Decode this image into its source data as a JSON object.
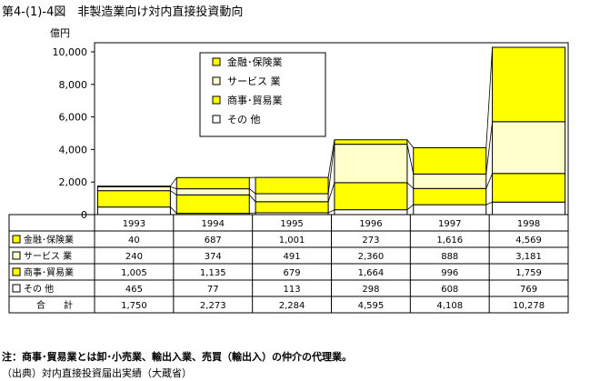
{
  "title": "第4-(1)-4図　非製造業向け対内直接投資動向",
  "chart_data": {
    "type": "bar",
    "stacked": true,
    "unit_label": "億円",
    "categories": [
      "1993",
      "1994",
      "1995",
      "1996",
      "1997",
      "1998"
    ],
    "ylim": [
      0,
      10000
    ],
    "yticks": [
      "0",
      "2,000",
      "4,000",
      "6,000",
      "8,000",
      "10,000"
    ],
    "series": [
      {
        "name": "その 他",
        "values": [
          465,
          77,
          113,
          298,
          608,
          769
        ],
        "color": "#ffffff"
      },
      {
        "name": "商事･貿易業",
        "values": [
          1005,
          1135,
          679,
          1664,
          996,
          1759
        ],
        "color": "#ffff00"
      },
      {
        "name": "サービス 業",
        "values": [
          240,
          374,
          491,
          2360,
          888,
          3181
        ],
        "color": "#ffffcc"
      },
      {
        "name": "金融･保険業",
        "values": [
          40,
          687,
          1001,
          273,
          1616,
          4569
        ],
        "color": "#ffff00"
      }
    ],
    "legend_placement": "top-center",
    "table": {
      "rows": [
        {
          "label": "金融･保険業",
          "values": [
            "40",
            "687",
            "1,001",
            "273",
            "1,616",
            "4,569"
          ],
          "color": "#ffff00"
        },
        {
          "label": "サービス 業",
          "values": [
            "240",
            "374",
            "491",
            "2,360",
            "888",
            "3,181"
          ],
          "color": "#ffffcc"
        },
        {
          "label": "商事･貿易業",
          "values": [
            "1,005",
            "1,135",
            "679",
            "1,664",
            "996",
            "1,759"
          ],
          "color": "#ffff00"
        },
        {
          "label": "その 他",
          "values": [
            "465",
            "77",
            "113",
            "298",
            "608",
            "769"
          ],
          "color": "#ffffff"
        }
      ],
      "total_label": "合　　計",
      "totals": [
        "1,750",
        "2,273",
        "2,284",
        "4,595",
        "4,108",
        "10,278"
      ]
    }
  },
  "notes": {
    "note": "注：商事･貿易業とは卸･小売業、輸出入業、売買（輸出入）の仲介の代理業。",
    "source": "（出典）対内直接投資届出実績（大蔵省）"
  }
}
